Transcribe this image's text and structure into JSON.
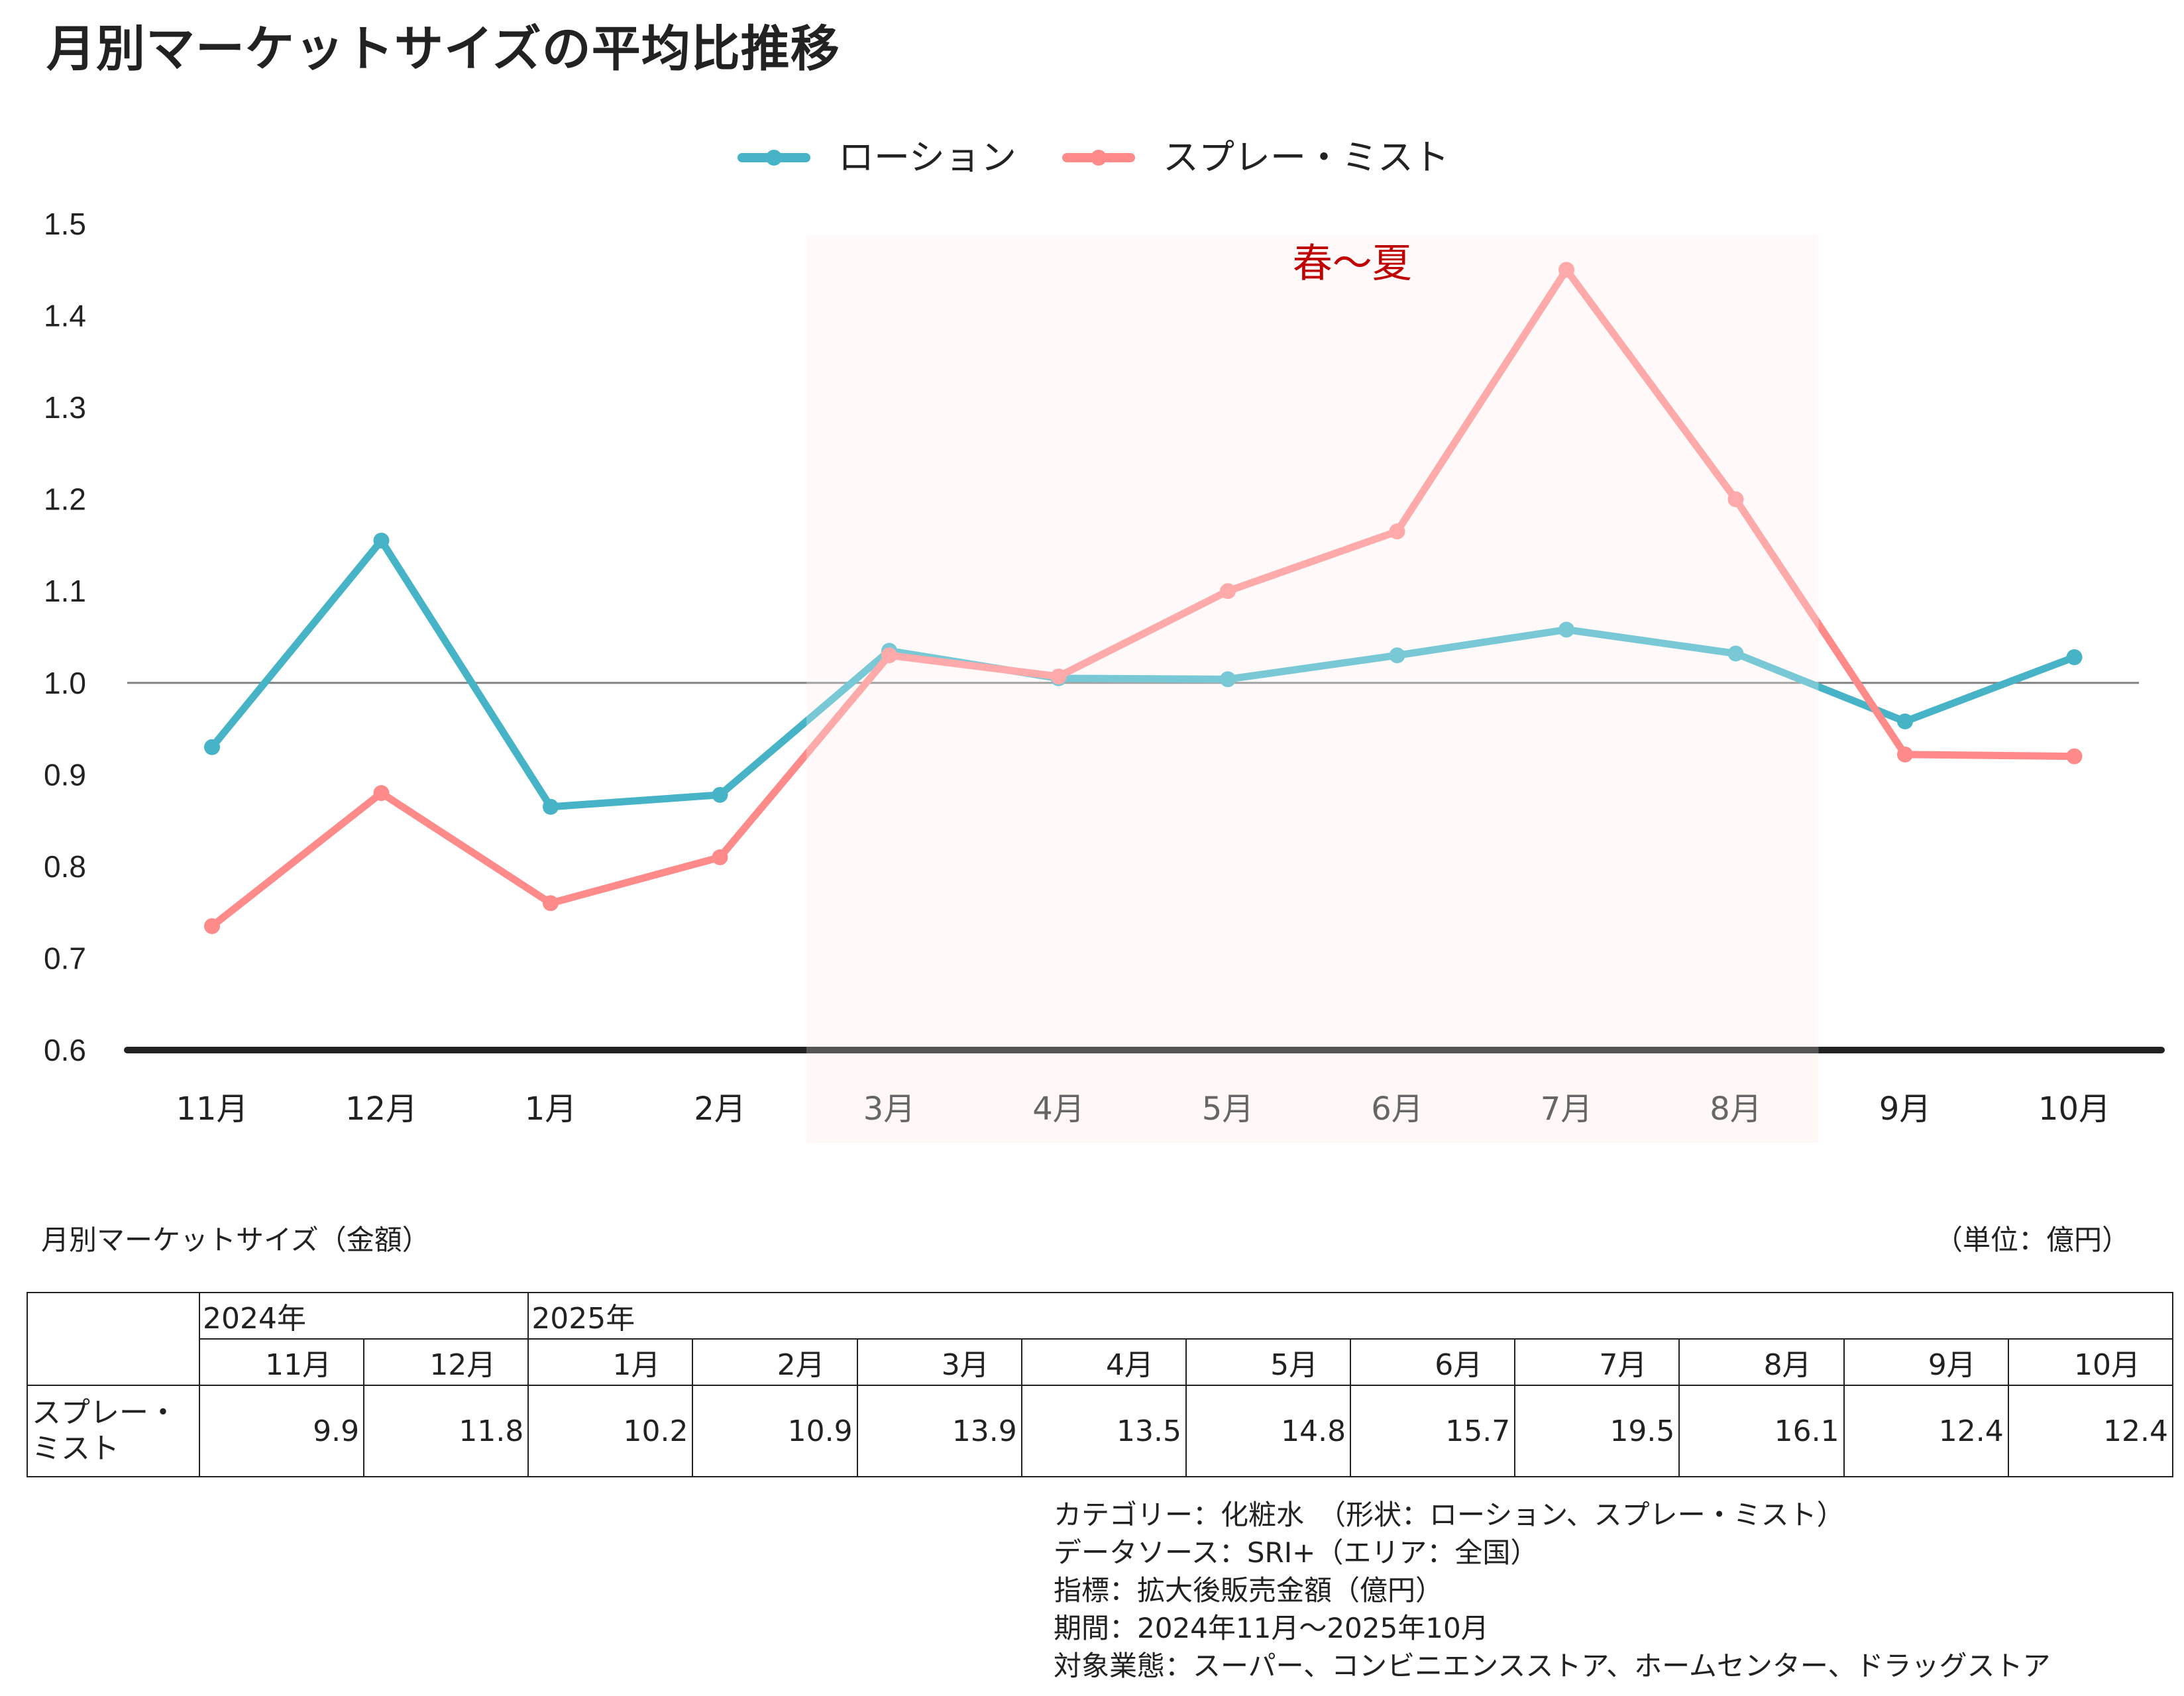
{
  "title": "月別マーケットサイズの平均比推移",
  "legend": [
    {
      "label": "ローション",
      "color": "#46B3C6"
    },
    {
      "label": "スプレー・ミスト",
      "color": "#FF8A8A"
    }
  ],
  "annotation": {
    "label": "春～夏",
    "color": "#C00000",
    "band_color": "#FFF8F7",
    "from": "3月",
    "to": "8月"
  },
  "chart_data": {
    "type": "line",
    "title": "月別マーケットサイズの平均比推移",
    "xlabel": "",
    "ylabel": "",
    "categories": [
      "11月",
      "12月",
      "1月",
      "2月",
      "3月",
      "4月",
      "5月",
      "6月",
      "7月",
      "8月",
      "9月",
      "10月"
    ],
    "series": [
      {
        "name": "ローション",
        "color": "#46B3C6",
        "values": [
          0.93,
          1.155,
          0.865,
          0.878,
          1.035,
          1.005,
          1.004,
          1.03,
          1.058,
          1.032,
          0.958,
          1.028
        ]
      },
      {
        "name": "スプレー・ミスト",
        "color": "#FF8A8A",
        "values": [
          0.735,
          0.88,
          0.76,
          0.81,
          1.03,
          1.007,
          1.1,
          1.165,
          1.45,
          1.2,
          0.922,
          0.92
        ]
      }
    ],
    "yticks": [
      "0.6",
      "0.7",
      "0.8",
      "0.9",
      "1.0",
      "1.1",
      "1.2",
      "1.3",
      "1.4",
      "1.5"
    ],
    "ylim": [
      0.6,
      1.5
    ],
    "reference_line": 1.0,
    "grid": false,
    "legend_position": "top",
    "highlight_band": {
      "from": "3月",
      "to": "8月",
      "label": "春～夏"
    }
  },
  "table": {
    "title": "月別マーケットサイズ（金額）",
    "unit": "（単位：億円）",
    "years": [
      {
        "label": "2024年",
        "span": 2
      },
      {
        "label": "2025年",
        "span": 10
      }
    ],
    "months": [
      "11月",
      "12月",
      "1月",
      "2月",
      "3月",
      "4月",
      "5月",
      "6月",
      "7月",
      "8月",
      "9月",
      "10月"
    ],
    "rows": [
      {
        "label_line1": "スプレー・",
        "label_line2": "ミスト",
        "values": [
          "9.9",
          "11.8",
          "10.2",
          "10.9",
          "13.9",
          "13.5",
          "14.8",
          "15.7",
          "19.5",
          "16.1",
          "12.4",
          "12.4"
        ]
      }
    ]
  },
  "footnote": [
    "カテゴリー：化粧水　（形状：ローション、スプレー・ミスト）",
    "データソース：SRI+（エリア：全国）",
    "指標：拡大後販売金額（億円）",
    "期間：2024年11月～2025年10月",
    "対象業態：スーパー、コンビニエンスストア、ホームセンター、ドラッグストア"
  ]
}
